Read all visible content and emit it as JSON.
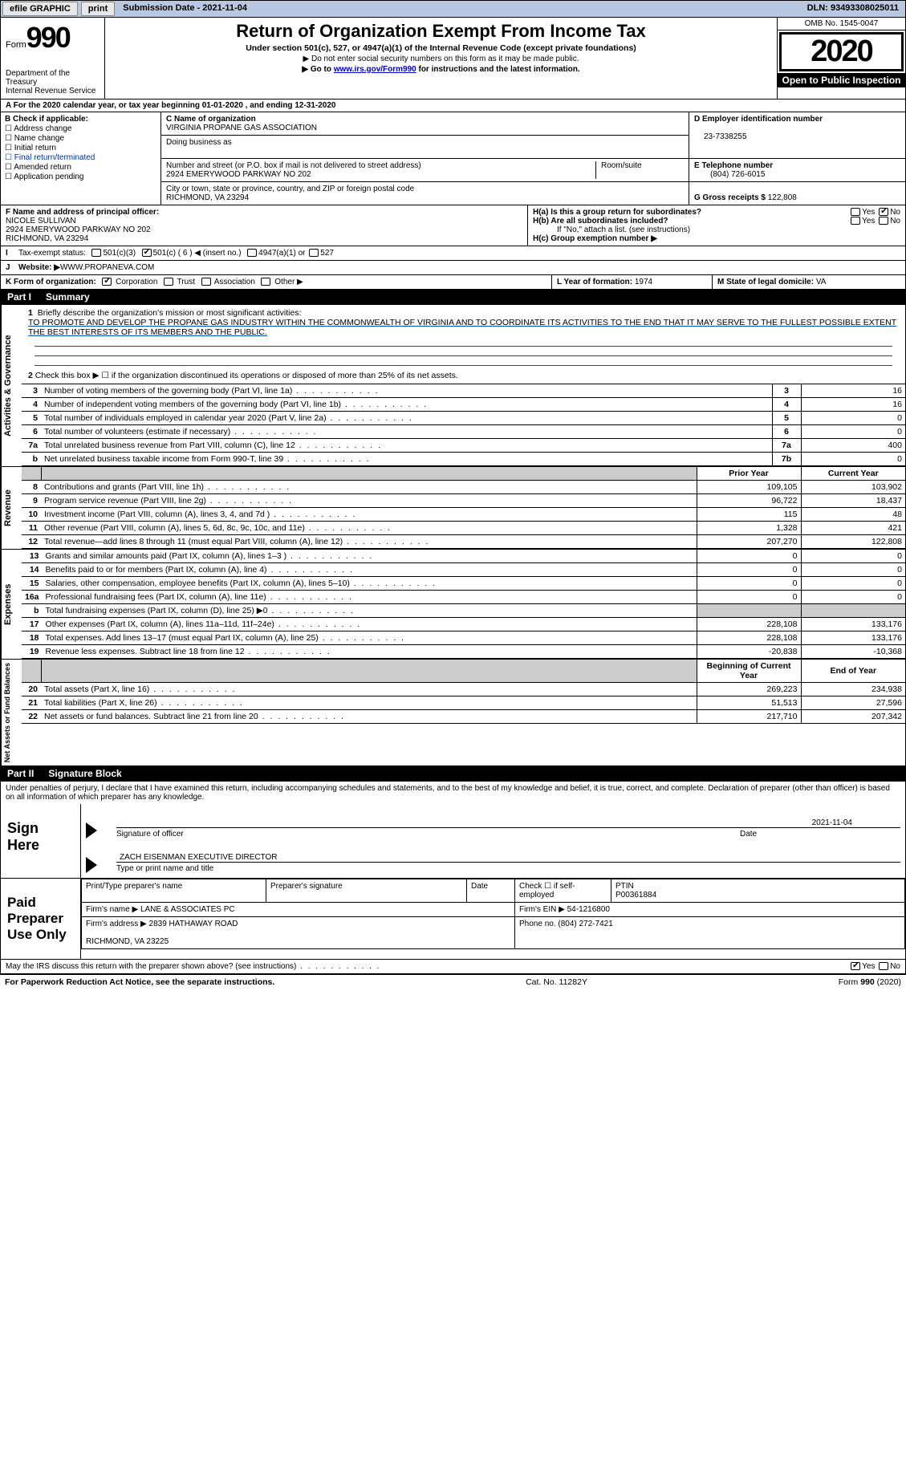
{
  "topbar": {
    "efile": "efile GRAPHIC",
    "print": "print",
    "subdate_label": "Submission Date - ",
    "subdate": "2021-11-04",
    "dln_label": "DLN: ",
    "dln": "93493308025011"
  },
  "header": {
    "form_word": "Form",
    "form_num": "990",
    "dept": "Department of the Treasury\nInternal Revenue Service",
    "title": "Return of Organization Exempt From Income Tax",
    "sub1": "Under section 501(c), 527, or 4947(a)(1) of the Internal Revenue Code (except private foundations)",
    "sub2": "▶ Do not enter social security numbers on this form as it may be made public.",
    "sub3a": "▶ Go to ",
    "sub3link": "www.irs.gov/Form990",
    "sub3b": " for instructions and the latest information.",
    "omb": "OMB No. 1545-0047",
    "year": "2020",
    "opi": "Open to Public Inspection"
  },
  "line_a": "A For the 2020 calendar year, or tax year beginning 01-01-2020   , and ending 12-31-2020",
  "boxB": {
    "label": "B Check if applicable:",
    "items": [
      "Address change",
      "Name change",
      "Initial return",
      "Final return/terminated",
      "Amended return",
      "Application pending"
    ]
  },
  "boxC": {
    "name_label": "C Name of organization",
    "name": "VIRGINIA PROPANE GAS ASSOCIATION",
    "dba_label": "Doing business as",
    "dba": "",
    "addr_label": "Number and street (or P.O. box if mail is not delivered to street address)",
    "addr": "2924 EMERYWOOD PARKWAY NO 202",
    "suite_label": "Room/suite",
    "city_label": "City or town, state or province, country, and ZIP or foreign postal code",
    "city": "RICHMOND, VA  23294"
  },
  "boxD": {
    "ein_label": "D Employer identification number",
    "ein": "23-7338255",
    "phone_label": "E Telephone number",
    "phone": "(804) 726-6015",
    "gross_label": "G Gross receipts $ ",
    "gross": "122,808"
  },
  "boxF": {
    "label": "F  Name and address of principal officer:",
    "name": "NICOLE SULLIVAN",
    "addr": "2924 EMERYWOOD PARKWAY NO 202\nRICHMOND, VA  23294"
  },
  "boxH": {
    "a_label": "H(a)  Is this a group return for subordinates?",
    "b_label": "H(b)  Are all subordinates included?",
    "b_note": "If \"No,\" attach a list. (see instructions)",
    "c_label": "H(c)  Group exemption number ▶",
    "yes": "Yes",
    "no": "No"
  },
  "rowI": {
    "label": "I",
    "text": "Tax-exempt status:",
    "opts": [
      "501(c)(3)",
      "501(c) ( 6 ) ◀ (insert no.)",
      "4947(a)(1) or",
      "527"
    ]
  },
  "rowJ": {
    "label": "J",
    "text": "Website: ▶ ",
    "val": "WWW.PROPANEVA.COM"
  },
  "rowK": {
    "text": "K Form of organization:",
    "opts": [
      "Corporation",
      "Trust",
      "Association",
      "Other ▶"
    ]
  },
  "rowL": {
    "text": "L Year of formation: ",
    "val": "1974"
  },
  "rowM": {
    "text": "M State of legal domicile: ",
    "val": "VA"
  },
  "part1": {
    "hdr_part": "Part I",
    "hdr_title": "Summary",
    "side_gov": "Activities & Governance",
    "side_rev": "Revenue",
    "side_exp": "Expenses",
    "side_net": "Net Assets or Fund Balances",
    "q1_label": "1",
    "q1_text": "Briefly describe the organization's mission or most significant activities:",
    "q1_val": "TO PROMOTE AND DEVELOP THE PROPANE GAS INDUSTRY WITHIN THE COMMONWEALTH OF VIRGINIA AND TO COORDINATE ITS ACTIVITIES TO THE END THAT IT MAY SERVE TO THE FULLEST POSSIBLE EXTENT THE BEST INTERESTS OF ITS MEMBERS AND THE PUBLIC.",
    "q2": "Check this box ▶ ☐  if the organization discontinued its operations or disposed of more than 25% of its net assets.",
    "hdr_prior": "Prior Year",
    "hdr_curr": "Current Year",
    "hdr_begin": "Beginning of Current Year",
    "hdr_end": "End of Year",
    "rows_gov": [
      {
        "n": "3",
        "t": "Number of voting members of the governing body (Part VI, line 1a)",
        "box": "3",
        "v": "16"
      },
      {
        "n": "4",
        "t": "Number of independent voting members of the governing body (Part VI, line 1b)",
        "box": "4",
        "v": "16"
      },
      {
        "n": "5",
        "t": "Total number of individuals employed in calendar year 2020 (Part V, line 2a)",
        "box": "5",
        "v": "0"
      },
      {
        "n": "6",
        "t": "Total number of volunteers (estimate if necessary)",
        "box": "6",
        "v": "0"
      },
      {
        "n": "7a",
        "t": "Total unrelated business revenue from Part VIII, column (C), line 12",
        "box": "7a",
        "v": "400"
      },
      {
        "n": "b",
        "t": "Net unrelated business taxable income from Form 990-T, line 39",
        "box": "7b",
        "v": "0"
      }
    ],
    "rows_rev": [
      {
        "n": "8",
        "t": "Contributions and grants (Part VIII, line 1h)",
        "p": "109,105",
        "c": "103,902"
      },
      {
        "n": "9",
        "t": "Program service revenue (Part VIII, line 2g)",
        "p": "96,722",
        "c": "18,437"
      },
      {
        "n": "10",
        "t": "Investment income (Part VIII, column (A), lines 3, 4, and 7d )",
        "p": "115",
        "c": "48"
      },
      {
        "n": "11",
        "t": "Other revenue (Part VIII, column (A), lines 5, 6d, 8c, 9c, 10c, and 11e)",
        "p": "1,328",
        "c": "421"
      },
      {
        "n": "12",
        "t": "Total revenue—add lines 8 through 11 (must equal Part VIII, column (A), line 12)",
        "p": "207,270",
        "c": "122,808"
      }
    ],
    "rows_exp": [
      {
        "n": "13",
        "t": "Grants and similar amounts paid (Part IX, column (A), lines 1–3 )",
        "p": "0",
        "c": "0"
      },
      {
        "n": "14",
        "t": "Benefits paid to or for members (Part IX, column (A), line 4)",
        "p": "0",
        "c": "0"
      },
      {
        "n": "15",
        "t": "Salaries, other compensation, employee benefits (Part IX, column (A), lines 5–10)",
        "p": "0",
        "c": "0"
      },
      {
        "n": "16a",
        "t": "Professional fundraising fees (Part IX, column (A), line 11e)",
        "p": "0",
        "c": "0"
      },
      {
        "n": "b",
        "t": "Total fundraising expenses (Part IX, column (D), line 25) ▶0",
        "p": "",
        "c": "",
        "shade": true
      },
      {
        "n": "17",
        "t": "Other expenses (Part IX, column (A), lines 11a–11d, 11f–24e)",
        "p": "228,108",
        "c": "133,176"
      },
      {
        "n": "18",
        "t": "Total expenses. Add lines 13–17 (must equal Part IX, column (A), line 25)",
        "p": "228,108",
        "c": "133,176"
      },
      {
        "n": "19",
        "t": "Revenue less expenses. Subtract line 18 from line 12",
        "p": "-20,838",
        "c": "-10,368"
      }
    ],
    "rows_net": [
      {
        "n": "20",
        "t": "Total assets (Part X, line 16)",
        "p": "269,223",
        "c": "234,938"
      },
      {
        "n": "21",
        "t": "Total liabilities (Part X, line 26)",
        "p": "51,513",
        "c": "27,596"
      },
      {
        "n": "22",
        "t": "Net assets or fund balances. Subtract line 21 from line 20",
        "p": "217,710",
        "c": "207,342"
      }
    ]
  },
  "part2": {
    "hdr_part": "Part II",
    "hdr_title": "Signature Block",
    "declare": "Under penalties of perjury, I declare that I have examined this return, including accompanying schedules and statements, and to the best of my knowledge and belief, it is true, correct, and complete. Declaration of preparer (other than officer) is based on all information of which preparer has any knowledge.",
    "sign_here": "Sign Here",
    "sig_officer": "Signature of officer",
    "sig_date_label": "Date",
    "sig_date": "2021-11-04",
    "officer_name": "ZACH EISENMAN  EXECUTIVE DIRECTOR",
    "officer_sub": "Type or print name and title",
    "paid": "Paid Preparer Use Only",
    "prep_name_label": "Print/Type preparer's name",
    "prep_sig_label": "Preparer's signature",
    "date_label": "Date",
    "check_self": "Check ☐ if self-employed",
    "ptin_label": "PTIN",
    "ptin": "P00361884",
    "firm_name_label": "Firm's name    ▶ ",
    "firm_name": "LANE & ASSOCIATES PC",
    "firm_ein_label": "Firm's EIN ▶ ",
    "firm_ein": "54-1216800",
    "firm_addr_label": "Firm's address ▶ ",
    "firm_addr": "2839 HATHAWAY ROAD\n\nRICHMOND, VA  23225",
    "firm_phone_label": "Phone no. ",
    "firm_phone": "(804) 272-7421",
    "may_irs": "May the IRS discuss this return with the preparer shown above? (see instructions)",
    "yes": "Yes",
    "no": "No"
  },
  "footer": {
    "pra": "For Paperwork Reduction Act Notice, see the separate instructions.",
    "cat": "Cat. No. 11282Y",
    "form": "Form 990 (2020)"
  },
  "colors": {
    "topbar_bg": "#b8c8e0",
    "link": "#0000cc",
    "underline": "#0055aa"
  }
}
